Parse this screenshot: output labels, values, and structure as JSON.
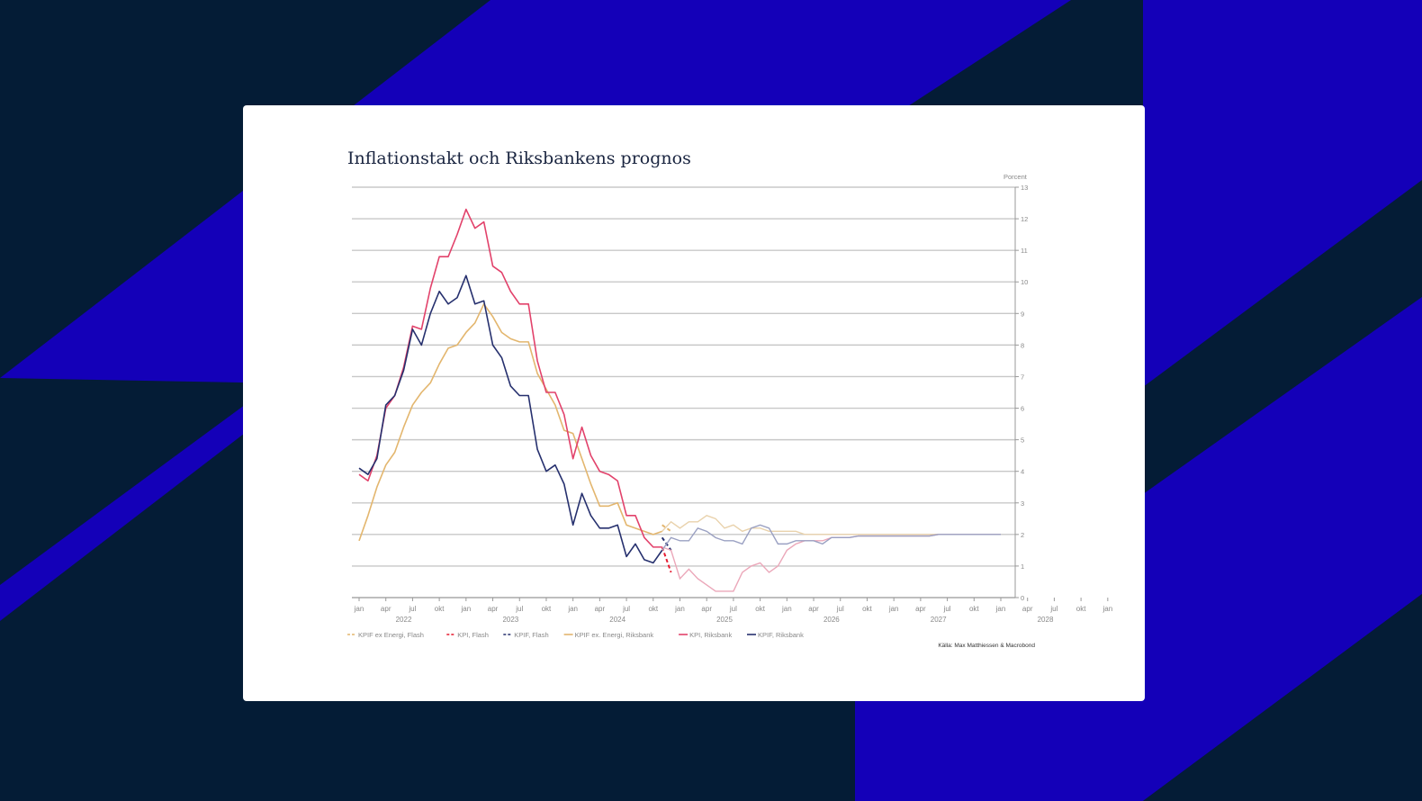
{
  "colors": {
    "background": "#041c36",
    "band": "#1400b8",
    "card": "#ffffff",
    "kpif_ex": "#e3b66e",
    "kpi": "#e2426b",
    "kpif": "#26306e"
  },
  "chart_data": {
    "type": "line",
    "title": "Inflationstakt och Riksbankens prognos",
    "ylabel": "Porcent",
    "ylim": [
      0,
      13
    ],
    "yticks": [
      0,
      1,
      2,
      3,
      4,
      5,
      6,
      7,
      8,
      9,
      10,
      11,
      12,
      13
    ],
    "grid": true,
    "legend_position": "bottom-left",
    "x_month_labels": [
      "jan",
      "apr",
      "jul",
      "okt",
      "jan",
      "apr",
      "jul",
      "okt",
      "jan",
      "apr",
      "jul",
      "okt",
      "jan",
      "apr",
      "jul",
      "okt",
      "jan",
      "apr",
      "jul",
      "okt",
      "jan",
      "apr",
      "jul",
      "okt",
      "jan",
      "apr",
      "jul",
      "okt",
      "jan"
    ],
    "x_year_labels": [
      "2022",
      "2023",
      "2024",
      "2025",
      "2026",
      "2027",
      "2028"
    ],
    "series": [
      {
        "name": "KPIF ex Energi, Flash",
        "color": "#e3b66e",
        "style": "dashed",
        "x": [
          "2024-11",
          "2024-12"
        ],
        "values": [
          2.3,
          2.1
        ]
      },
      {
        "name": "KPI, Flash",
        "color": "#e5192f",
        "style": "dashed",
        "x": [
          "2024-11",
          "2024-12"
        ],
        "values": [
          1.6,
          0.8
        ]
      },
      {
        "name": "KPIF, Flash",
        "color": "#26306e",
        "style": "dashed",
        "x": [
          "2024-11",
          "2024-12"
        ],
        "values": [
          1.9,
          1.5
        ]
      },
      {
        "name": "KPIF ex. Energi, Riksbank",
        "color": "#e3b66e",
        "style": "solid",
        "x": [
          "2022-01",
          "2022-02",
          "2022-03",
          "2022-04",
          "2022-05",
          "2022-06",
          "2022-07",
          "2022-08",
          "2022-09",
          "2022-10",
          "2022-11",
          "2022-12",
          "2023-01",
          "2023-02",
          "2023-03",
          "2023-04",
          "2023-05",
          "2023-06",
          "2023-07",
          "2023-08",
          "2023-09",
          "2023-10",
          "2023-11",
          "2023-12",
          "2024-01",
          "2024-02",
          "2024-03",
          "2024-04",
          "2024-05",
          "2024-06",
          "2024-07",
          "2024-08",
          "2024-09",
          "2024-10",
          "2024-11",
          "2024-12",
          "2025-01",
          "2025-02",
          "2025-03",
          "2025-04",
          "2025-05",
          "2025-06",
          "2025-07",
          "2025-08",
          "2025-09",
          "2025-10",
          "2025-11",
          "2025-12",
          "2026-01",
          "2026-02",
          "2026-03",
          "2026-04",
          "2026-05",
          "2026-06",
          "2026-07",
          "2026-08",
          "2026-09",
          "2026-10",
          "2026-11",
          "2026-12",
          "2027-01",
          "2027-02",
          "2027-03",
          "2027-04",
          "2027-05",
          "2027-06",
          "2027-07",
          "2027-08",
          "2027-09",
          "2027-10",
          "2027-11",
          "2027-12",
          "2028-01"
        ],
        "values": [
          1.8,
          2.6,
          3.5,
          4.2,
          4.6,
          5.4,
          6.1,
          6.5,
          6.8,
          7.4,
          7.9,
          8.0,
          8.4,
          8.7,
          9.3,
          8.9,
          8.4,
          8.2,
          8.1,
          8.1,
          7.1,
          6.6,
          6.1,
          5.3,
          5.2,
          4.4,
          3.6,
          2.9,
          2.9,
          3.0,
          2.3,
          2.2,
          2.1,
          2.0,
          2.1,
          2.4,
          2.2,
          2.4,
          2.4,
          2.6,
          2.5,
          2.2,
          2.3,
          2.1,
          2.2,
          2.2,
          2.1,
          2.1,
          2.1,
          2.1,
          2.0,
          2.0,
          2.0,
          2.0,
          2.0,
          2.0,
          2.0,
          2.0,
          2.0,
          2.0,
          2.0,
          2.0,
          2.0,
          2.0,
          2.0,
          2.0,
          2.0,
          2.0,
          2.0,
          2.0,
          2.0,
          2.0,
          2.0
        ]
      },
      {
        "name": "KPI, Riksbank",
        "color": "#e2426b",
        "style": "solid",
        "x": [
          "2022-01",
          "2022-02",
          "2022-03",
          "2022-04",
          "2022-05",
          "2022-06",
          "2022-07",
          "2022-08",
          "2022-09",
          "2022-10",
          "2022-11",
          "2022-12",
          "2023-01",
          "2023-02",
          "2023-03",
          "2023-04",
          "2023-05",
          "2023-06",
          "2023-07",
          "2023-08",
          "2023-09",
          "2023-10",
          "2023-11",
          "2023-12",
          "2024-01",
          "2024-02",
          "2024-03",
          "2024-04",
          "2024-05",
          "2024-06",
          "2024-07",
          "2024-08",
          "2024-09",
          "2024-10",
          "2024-11",
          "2024-12",
          "2025-01",
          "2025-02",
          "2025-03",
          "2025-04",
          "2025-05",
          "2025-06",
          "2025-07",
          "2025-08",
          "2025-09",
          "2025-10",
          "2025-11",
          "2025-12",
          "2026-01",
          "2026-02",
          "2026-03",
          "2026-04",
          "2026-05",
          "2026-06",
          "2026-07",
          "2026-08",
          "2026-09",
          "2026-10",
          "2026-11",
          "2026-12",
          "2027-01",
          "2027-02",
          "2027-03",
          "2027-04",
          "2027-05",
          "2027-06",
          "2027-07",
          "2027-08",
          "2027-09",
          "2027-10",
          "2027-11",
          "2027-12",
          "2028-01"
        ],
        "values": [
          3.9,
          3.7,
          4.5,
          6.0,
          6.4,
          7.3,
          8.6,
          8.5,
          9.8,
          10.8,
          10.8,
          11.5,
          12.3,
          11.7,
          11.9,
          10.5,
          10.3,
          9.7,
          9.3,
          9.3,
          7.5,
          6.5,
          6.5,
          5.8,
          4.4,
          5.4,
          4.5,
          4.0,
          3.9,
          3.7,
          2.6,
          2.6,
          1.9,
          1.6,
          1.6,
          1.5,
          0.6,
          0.9,
          0.6,
          0.4,
          0.2,
          0.2,
          0.2,
          0.8,
          1.0,
          1.1,
          0.8,
          1.0,
          1.5,
          1.7,
          1.8,
          1.8,
          1.8,
          1.9,
          1.9,
          1.9,
          1.95,
          1.95,
          1.95,
          1.95,
          1.95,
          1.95,
          1.95,
          1.95,
          1.95,
          2.0,
          2.0,
          2.0,
          2.0,
          2.0,
          2.0,
          2.0,
          2.0
        ]
      },
      {
        "name": "KPIF, Riksbank",
        "color": "#26306e",
        "style": "solid",
        "x": [
          "2022-01",
          "2022-02",
          "2022-03",
          "2022-04",
          "2022-05",
          "2022-06",
          "2022-07",
          "2022-08",
          "2022-09",
          "2022-10",
          "2022-11",
          "2022-12",
          "2023-01",
          "2023-02",
          "2023-03",
          "2023-04",
          "2023-05",
          "2023-06",
          "2023-07",
          "2023-08",
          "2023-09",
          "2023-10",
          "2023-11",
          "2023-12",
          "2024-01",
          "2024-02",
          "2024-03",
          "2024-04",
          "2024-05",
          "2024-06",
          "2024-07",
          "2024-08",
          "2024-09",
          "2024-10",
          "2024-11",
          "2024-12",
          "2025-01",
          "2025-02",
          "2025-03",
          "2025-04",
          "2025-05",
          "2025-06",
          "2025-07",
          "2025-08",
          "2025-09",
          "2025-10",
          "2025-11",
          "2025-12",
          "2026-01",
          "2026-02",
          "2026-03",
          "2026-04",
          "2026-05",
          "2026-06",
          "2026-07",
          "2026-08",
          "2026-09",
          "2026-10",
          "2026-11",
          "2026-12",
          "2027-01",
          "2027-02",
          "2027-03",
          "2027-04",
          "2027-05",
          "2027-06",
          "2027-07",
          "2027-08",
          "2027-09",
          "2027-10",
          "2027-11",
          "2027-12",
          "2028-01"
        ],
        "values": [
          4.1,
          3.9,
          4.4,
          6.1,
          6.4,
          7.2,
          8.5,
          8.0,
          9.0,
          9.7,
          9.3,
          9.5,
          10.2,
          9.3,
          9.4,
          8.0,
          7.6,
          6.7,
          6.4,
          6.4,
          4.7,
          4.0,
          4.2,
          3.6,
          2.3,
          3.3,
          2.6,
          2.2,
          2.2,
          2.3,
          1.3,
          1.7,
          1.2,
          1.1,
          1.5,
          1.9,
          1.8,
          1.8,
          2.2,
          2.1,
          1.9,
          1.8,
          1.8,
          1.7,
          2.2,
          2.3,
          2.2,
          1.7,
          1.7,
          1.8,
          1.8,
          1.8,
          1.7,
          1.9,
          1.9,
          1.9,
          1.95,
          1.95,
          1.95,
          1.95,
          1.95,
          1.95,
          1.95,
          1.95,
          1.95,
          2.0,
          2.0,
          2.0,
          2.0,
          2.0,
          2.0,
          2.0,
          2.0
        ]
      }
    ],
    "forecast_start": "2024-12",
    "source_note": "Källa: Max Matthiessen & Macrobond"
  }
}
